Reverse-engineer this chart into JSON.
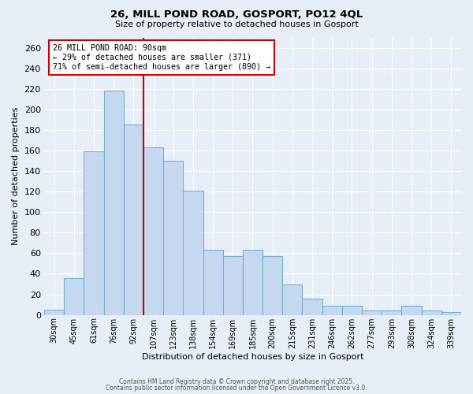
{
  "title_line1": "26, MILL POND ROAD, GOSPORT, PO12 4QL",
  "title_line2": "Size of property relative to detached houses in Gosport",
  "xlabel": "Distribution of detached houses by size in Gosport",
  "ylabel": "Number of detached properties",
  "bar_labels": [
    "30sqm",
    "45sqm",
    "61sqm",
    "76sqm",
    "92sqm",
    "107sqm",
    "123sqm",
    "138sqm",
    "154sqm",
    "169sqm",
    "185sqm",
    "200sqm",
    "215sqm",
    "231sqm",
    "246sqm",
    "262sqm",
    "277sqm",
    "293sqm",
    "308sqm",
    "324sqm",
    "339sqm"
  ],
  "bar_values": [
    5,
    36,
    159,
    218,
    185,
    163,
    150,
    121,
    63,
    57,
    63,
    57,
    30,
    16,
    9,
    9,
    4,
    4,
    9,
    4,
    3
  ],
  "bar_color": "#c5d8f0",
  "bar_edgecolor": "#7aafd4",
  "bar_linewidth": 0.8,
  "vline_x": 4.5,
  "vline_color": "#cc0000",
  "annotation_text": "26 MILL POND ROAD: 90sqm\n← 29% of detached houses are smaller (371)\n71% of semi-detached houses are larger (890) →",
  "annotation_box_edgecolor": "#cc0000",
  "annotation_box_facecolor": "white",
  "ylim": [
    0,
    270
  ],
  "yticks": [
    0,
    20,
    40,
    60,
    80,
    100,
    120,
    140,
    160,
    180,
    200,
    220,
    240,
    260
  ],
  "background_color": "#e8eef8",
  "plot_background": "#e8eef8",
  "grid_color": "white",
  "footer_line1": "Contains HM Land Registry data © Crown copyright and database right 2025.",
  "footer_line2": "Contains public sector information licensed under the Open Government Licence v3.0."
}
